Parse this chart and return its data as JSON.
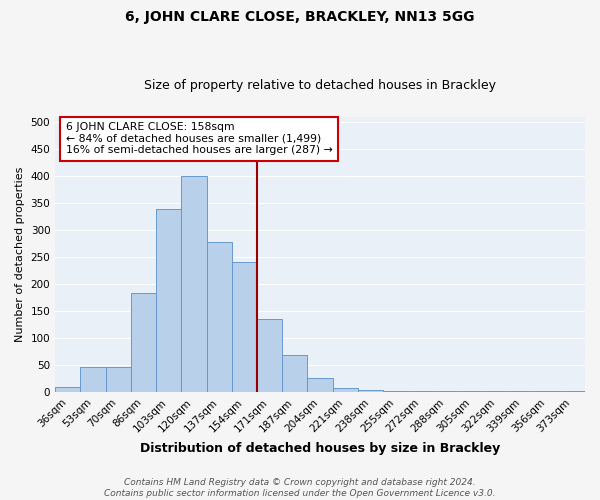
{
  "title": "6, JOHN CLARE CLOSE, BRACKLEY, NN13 5GG",
  "subtitle": "Size of property relative to detached houses in Brackley",
  "xlabel": "Distribution of detached houses by size in Brackley",
  "ylabel": "Number of detached properties",
  "bin_labels": [
    "36sqm",
    "53sqm",
    "70sqm",
    "86sqm",
    "103sqm",
    "120sqm",
    "137sqm",
    "154sqm",
    "171sqm",
    "187sqm",
    "204sqm",
    "221sqm",
    "238sqm",
    "255sqm",
    "272sqm",
    "288sqm",
    "305sqm",
    "322sqm",
    "339sqm",
    "356sqm",
    "373sqm"
  ],
  "bar_heights": [
    10,
    46,
    46,
    183,
    340,
    400,
    277,
    240,
    135,
    68,
    25,
    8,
    3,
    2,
    1,
    1,
    1,
    1,
    1,
    1,
    1
  ],
  "bar_color": "#b8d0ea",
  "bar_edge_color": "#6699cc",
  "background_color": "#eaf0f8",
  "grid_color": "#ffffff",
  "vline_color": "#990000",
  "annotation_text": "6 JOHN CLARE CLOSE: 158sqm\n← 84% of detached houses are smaller (1,499)\n16% of semi-detached houses are larger (287) →",
  "annotation_box_color": "#ffffff",
  "annotation_box_edge": "#cc0000",
  "footnote": "Contains HM Land Registry data © Crown copyright and database right 2024.\nContains public sector information licensed under the Open Government Licence v3.0.",
  "ylim": [
    0,
    510
  ],
  "yticks": [
    0,
    50,
    100,
    150,
    200,
    250,
    300,
    350,
    400,
    450,
    500
  ],
  "fig_bg_color": "#f5f5f5",
  "title_fontsize": 10,
  "subtitle_fontsize": 9,
  "xlabel_fontsize": 9,
  "ylabel_fontsize": 8,
  "tick_fontsize": 7.5,
  "footnote_fontsize": 6.5
}
